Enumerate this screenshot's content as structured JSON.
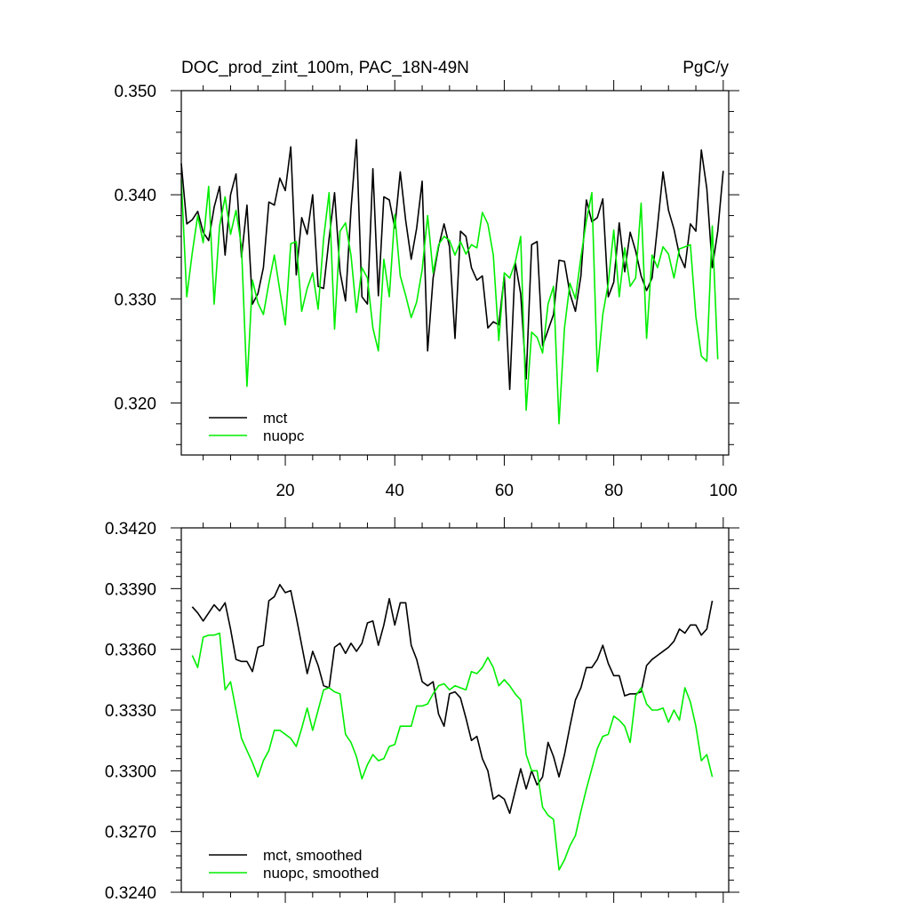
{
  "figure": {
    "title": "DOC_prod_zint_100m, PAC_18N-49N",
    "units": "PgC/y"
  },
  "colors": {
    "mct": "#000000",
    "nuopc": "#00ee00"
  },
  "chart_data": [
    {
      "type": "line",
      "xlim": [
        1,
        101
      ],
      "ylim": [
        0.315,
        0.35
      ],
      "x_ticks": [
        20,
        40,
        60,
        80,
        100
      ],
      "y_ticks": [
        "0.320",
        "0.330",
        "0.340",
        "0.350"
      ],
      "legend_position": "bottom-left",
      "series": [
        {
          "name": "mct",
          "color": "#000000",
          "x_start": 1,
          "values": [
            0.343,
            0.3372,
            0.3376,
            0.3384,
            0.3364,
            0.3356,
            0.3388,
            0.3408,
            0.3342,
            0.34,
            0.342,
            0.334,
            0.339,
            0.3295,
            0.3305,
            0.333,
            0.3393,
            0.339,
            0.3416,
            0.3404,
            0.3446,
            0.3323,
            0.3378,
            0.3362,
            0.34,
            0.3312,
            0.331,
            0.3358,
            0.3402,
            0.3326,
            0.3298,
            0.3386,
            0.3453,
            0.3302,
            0.3295,
            0.3425,
            0.3303,
            0.3398,
            0.3395,
            0.3368,
            0.3422,
            0.3375,
            0.3338,
            0.3368,
            0.3413,
            0.325,
            0.332,
            0.335,
            0.3372,
            0.335,
            0.3262,
            0.3365,
            0.336,
            0.333,
            0.3318,
            0.3322,
            0.3272,
            0.3278,
            0.3275,
            0.3322,
            0.3213,
            0.3335,
            0.3305,
            0.3223,
            0.3352,
            0.3355,
            0.3255,
            0.327,
            0.3285,
            0.3337,
            0.3336,
            0.3305,
            0.3288,
            0.3322,
            0.3395,
            0.3374,
            0.3378,
            0.3396,
            0.3302,
            0.3316,
            0.3373,
            0.3326,
            0.3364,
            0.3346,
            0.3322,
            0.3308,
            0.332,
            0.337,
            0.3422,
            0.3385,
            0.3367,
            0.3342,
            0.333,
            0.3372,
            0.3365,
            0.3443,
            0.3406,
            0.333,
            0.3365,
            0.3423
          ]
        },
        {
          "name": "nuopc",
          "color": "#00ee00",
          "x_start": 1,
          "values": [
            0.3415,
            0.3302,
            0.3344,
            0.338,
            0.3354,
            0.3408,
            0.3295,
            0.337,
            0.3398,
            0.3362,
            0.3385,
            0.335,
            0.3216,
            0.3318,
            0.3296,
            0.3285,
            0.3315,
            0.3342,
            0.3308,
            0.3275,
            0.3353,
            0.3355,
            0.3288,
            0.331,
            0.3325,
            0.329,
            0.3358,
            0.3402,
            0.3271,
            0.3365,
            0.3373,
            0.3342,
            0.3287,
            0.333,
            0.332,
            0.3272,
            0.325,
            0.3338,
            0.3302,
            0.3381,
            0.3322,
            0.3303,
            0.3282,
            0.3297,
            0.3328,
            0.338,
            0.3325,
            0.3352,
            0.336,
            0.3356,
            0.3342,
            0.3355,
            0.3343,
            0.3352,
            0.3349,
            0.3383,
            0.3372,
            0.3342,
            0.326,
            0.3325,
            0.332,
            0.3335,
            0.336,
            0.3193,
            0.3268,
            0.3263,
            0.3248,
            0.3295,
            0.3312,
            0.318,
            0.3272,
            0.3315,
            0.33,
            0.334,
            0.3375,
            0.3402,
            0.323,
            0.3285,
            0.3315,
            0.3366,
            0.3302,
            0.3349,
            0.3312,
            0.332,
            0.3392,
            0.3262,
            0.3342,
            0.333,
            0.335,
            0.3343,
            0.332,
            0.3348,
            0.335,
            0.3352,
            0.3283,
            0.3245,
            0.324,
            0.337,
            0.3242
          ]
        }
      ]
    },
    {
      "type": "line",
      "xlim": [
        1,
        101
      ],
      "ylim": [
        0.324,
        0.342
      ],
      "y_ticks": [
        "0.3240",
        "0.3270",
        "0.3300",
        "0.3330",
        "0.3360",
        "0.3390",
        "0.3420"
      ],
      "legend_position": "bottom-left",
      "series": [
        {
          "name": "mct, smoothed",
          "color": "#000000",
          "x_start": 3,
          "values": [
            0.3381,
            0.3378,
            0.3374,
            0.3378,
            0.3382,
            0.3379,
            0.3383,
            0.337,
            0.3355,
            0.3354,
            0.3354,
            0.3349,
            0.3361,
            0.3362,
            0.3384,
            0.3386,
            0.3392,
            0.3388,
            0.3389,
            0.3376,
            0.3362,
            0.3348,
            0.3359,
            0.3352,
            0.3342,
            0.3341,
            0.3361,
            0.3363,
            0.3358,
            0.3363,
            0.3359,
            0.3363,
            0.3373,
            0.3374,
            0.3362,
            0.3372,
            0.3385,
            0.3372,
            0.3383,
            0.3383,
            0.3362,
            0.3355,
            0.3344,
            0.3342,
            0.3344,
            0.3328,
            0.3322,
            0.3338,
            0.3339,
            0.3336,
            0.3326,
            0.3315,
            0.3317,
            0.3306,
            0.33,
            0.3286,
            0.3288,
            0.3286,
            0.3279,
            0.329,
            0.3301,
            0.3291,
            0.33,
            0.3293,
            0.3297,
            0.3314,
            0.3307,
            0.3297,
            0.3308,
            0.3322,
            0.3335,
            0.3341,
            0.3351,
            0.3351,
            0.3355,
            0.3362,
            0.3353,
            0.3347,
            0.3347,
            0.3337,
            0.3338,
            0.3338,
            0.3339,
            0.3352,
            0.3355,
            0.3357,
            0.3359,
            0.3361,
            0.3364,
            0.337,
            0.3368,
            0.3372,
            0.3372,
            0.3367,
            0.337,
            0.3384
          ]
        },
        {
          "name": "nuopc, smoothed",
          "color": "#00ee00",
          "x_start": 3,
          "values": [
            0.3357,
            0.3351,
            0.3366,
            0.3367,
            0.3367,
            0.3368,
            0.334,
            0.3344,
            0.333,
            0.3316,
            0.331,
            0.3304,
            0.3297,
            0.3305,
            0.331,
            0.332,
            0.332,
            0.3318,
            0.3316,
            0.3312,
            0.3321,
            0.3331,
            0.332,
            0.333,
            0.334,
            0.3341,
            0.3339,
            0.3338,
            0.3318,
            0.3314,
            0.3307,
            0.3296,
            0.3303,
            0.3308,
            0.3305,
            0.3306,
            0.3312,
            0.3313,
            0.3322,
            0.3322,
            0.3322,
            0.3332,
            0.3332,
            0.3333,
            0.3338,
            0.3342,
            0.3343,
            0.334,
            0.3342,
            0.3341,
            0.334,
            0.3349,
            0.3348,
            0.3351,
            0.3356,
            0.3351,
            0.3342,
            0.3345,
            0.3342,
            0.3338,
            0.3335,
            0.3308,
            0.33,
            0.33,
            0.3282,
            0.3278,
            0.3276,
            0.3251,
            0.3256,
            0.3263,
            0.3268,
            0.328,
            0.3291,
            0.3301,
            0.3311,
            0.3317,
            0.3318,
            0.3327,
            0.3325,
            0.3322,
            0.3314,
            0.3337,
            0.3341,
            0.3333,
            0.333,
            0.333,
            0.3331,
            0.3324,
            0.333,
            0.3325,
            0.3341,
            0.3334,
            0.3322,
            0.3305,
            0.3308,
            0.3297
          ]
        }
      ]
    }
  ]
}
